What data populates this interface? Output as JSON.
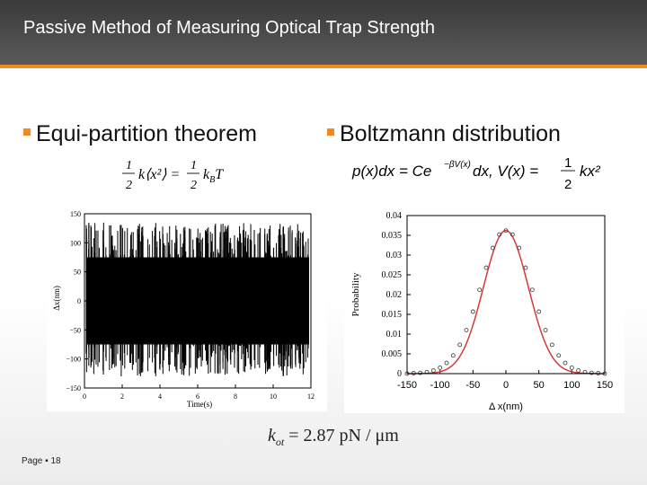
{
  "slide": {
    "title": "Passive Method of Measuring Optical Trap Strength",
    "footer": "Page ▪ 18",
    "accent_color": "#f28a1e",
    "header_color": "#4a4a4a"
  },
  "bullets": {
    "left": "Equi-partition theorem",
    "right": "Boltzmann distribution"
  },
  "equations": {
    "equipartition_lhs_frac": "1/2",
    "equipartition_lhs": "k⟨x²⟩",
    "equipartition_rhs_frac": "1/2",
    "equipartition_rhs": "k_B T",
    "boltzmann": "p(x)dx = Ce^{−βV(x)}dx, V(x) = ½kx²",
    "result_k": "k",
    "result_sub": "ot",
    "result_rest": " = 2.87 pN / μm"
  },
  "chart_data": [
    {
      "type": "line",
      "title": "",
      "xlabel": "Time(s)",
      "ylabel": "Δx(nm)",
      "xlim": [
        0,
        12
      ],
      "ylim": [
        -150,
        150
      ],
      "xticks": [
        "0",
        "2",
        "4",
        "6",
        "8",
        "10",
        "12"
      ],
      "yticks": [
        "150",
        "100",
        "50",
        "0",
        "−50",
        "−100",
        "−150"
      ],
      "series": [
        {
          "values_description_note": "dense thermal noise trace, std ~35 nm"
        }
      ]
    },
    {
      "type": "scatter",
      "title": "",
      "xlabel": "Δ x(nm)",
      "ylabel": "Probability",
      "xlim": [
        -150,
        150
      ],
      "ylim": [
        0,
        0.04
      ],
      "xticks": [
        "-150",
        "-100",
        "-50",
        "0",
        "50",
        "100",
        "150"
      ],
      "yticks": [
        "0.04",
        "0.035",
        "0.03",
        "0.025",
        "0.02",
        "0.015",
        "0.01",
        "0.005",
        "0"
      ],
      "x": [
        -150,
        -140,
        -130,
        -120,
        -110,
        -100,
        -90,
        -80,
        -70,
        -60,
        -50,
        -40,
        -30,
        -20,
        -10,
        0,
        10,
        20,
        30,
        40,
        50,
        60,
        70,
        80,
        90,
        100,
        110,
        120,
        130,
        140,
        150
      ],
      "y": [
        0.0,
        0.0001,
        0.0002,
        0.0004,
        0.0008,
        0.0015,
        0.0027,
        0.0046,
        0.0073,
        0.011,
        0.0157,
        0.0212,
        0.0268,
        0.0318,
        0.0352,
        0.0362,
        0.0352,
        0.0318,
        0.0268,
        0.0212,
        0.0157,
        0.011,
        0.0073,
        0.0046,
        0.0027,
        0.0015,
        0.0008,
        0.0004,
        0.0002,
        0.0001,
        0.0
      ],
      "fit_color": "#d43a3a"
    }
  ]
}
